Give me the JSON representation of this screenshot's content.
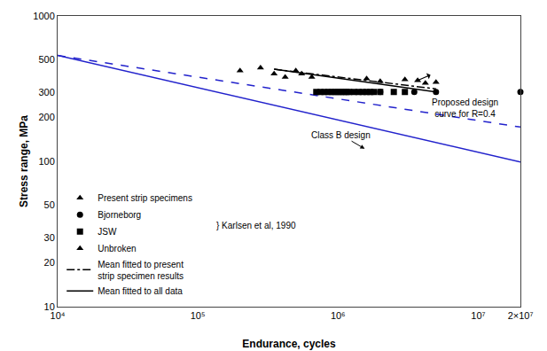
{
  "chart_data": {
    "type": "scatter",
    "title": "",
    "xlabel": "Endurance, cycles",
    "ylabel": "Stress range, MPa",
    "log": true,
    "grid": false,
    "legend": "lower left",
    "background_color": "#ffffff",
    "xlim": [
      10000,
      20000000
    ],
    "ylim": [
      10,
      1000
    ],
    "xticks": [
      {
        "value": 10000,
        "label": "10⁴"
      },
      {
        "value": 100000,
        "label": "10⁵"
      },
      {
        "value": 1000000,
        "label": "10⁶"
      },
      {
        "value": 10000000,
        "label": "10⁷"
      },
      {
        "value": 20000000,
        "label": "2×10⁷"
      }
    ],
    "yticks": [
      10,
      20,
      30,
      50,
      100,
      200,
      300,
      500,
      1000
    ],
    "series": [
      {
        "name": "Present strip specimens",
        "type": "scatter",
        "marker": "triangle",
        "color": "#000000",
        "x": [
          200000,
          280000,
          350000,
          420000,
          500000,
          550000,
          650000,
          1600000,
          2000000,
          3000000,
          4200000,
          5000000
        ],
        "values": [
          420,
          440,
          400,
          380,
          420,
          400,
          380,
          370,
          355,
          365,
          345,
          350
        ]
      },
      {
        "name": "Bjorneborg",
        "type": "scatter",
        "marker": "circle",
        "color": "#000000",
        "x": [
          2000000,
          3500000,
          5000000,
          20000000
        ],
        "values": [
          300,
          300,
          300,
          300
        ]
      },
      {
        "name": "JSW",
        "type": "scatter",
        "marker": "square",
        "color": "#000000",
        "x": [
          700000,
          750000,
          800000,
          850000,
          900000,
          950000,
          1000000,
          1050000,
          1100000,
          1150000,
          1200000,
          1300000,
          1400000,
          1500000,
          1600000,
          1700000,
          1800000,
          2000000,
          2500000,
          3000000
        ],
        "values": [
          300,
          300,
          300,
          300,
          300,
          300,
          300,
          300,
          300,
          300,
          300,
          300,
          300,
          300,
          300,
          300,
          300,
          300,
          300,
          300
        ]
      },
      {
        "name": "Unbroken",
        "type": "scatter",
        "marker": "triangle_arrow",
        "color": "#000000",
        "x": [
          3700000
        ],
        "values": [
          360
        ]
      },
      {
        "name": "Mean fitted to present\nstrip specimen results",
        "type": "line",
        "line_style": "dashdot",
        "color": "#000000",
        "x": [
          350000,
          5000000
        ],
        "values": [
          430,
          315
        ]
      },
      {
        "name": "Mean fitted to all data",
        "type": "line",
        "line_style": "solid",
        "color": "#000000",
        "x": [
          350000,
          5000000
        ],
        "values": [
          430,
          300
        ]
      },
      {
        "type": "line",
        "line_style": "solid",
        "color": "#2222cc",
        "x": [
          10000,
          20000000
        ],
        "values": [
          535,
          99
        ]
      },
      {
        "type": "line",
        "line_style": "dash",
        "color": "#2222cc",
        "x": [
          10000,
          20000000
        ],
        "values": [
          535,
          172
        ]
      }
    ],
    "annotations": [
      {
        "text": "Class B design",
        "x": 1550000,
        "y": 122,
        "text_x": 1050000,
        "text_y": 152
      },
      {
        "text": "Proposed design\ncurve for R=0.4",
        "x": 5200000,
        "y": 200,
        "text_x": 8000000,
        "text_y": 232
      },
      {
        "text": "} Karlsen et al, 1990"
      }
    ]
  }
}
